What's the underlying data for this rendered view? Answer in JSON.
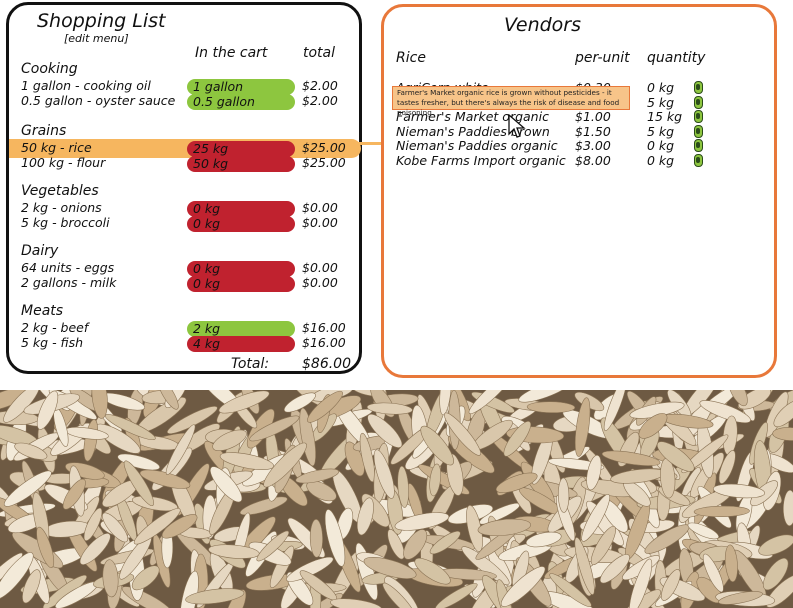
{
  "shopping_list": {
    "title": "Shopping List",
    "edit_menu": "[edit menu]",
    "col_cart": "In the cart",
    "col_total": "total",
    "categories": [
      {
        "name": "Cooking",
        "items": [
          {
            "label": "1 gallon - cooking oil",
            "cart": "1 gallon",
            "status": "green",
            "total": "$2.00"
          },
          {
            "label": "0.5 gallon - oyster sauce",
            "cart": "0.5 gallon",
            "status": "green",
            "total": "$2.00"
          }
        ]
      },
      {
        "name": "Grains",
        "items": [
          {
            "label": "50 kg - rice",
            "cart": "25 kg",
            "status": "red",
            "total": "$25.00"
          },
          {
            "label": "100 kg - flour",
            "cart": "50 kg",
            "status": "red",
            "total": "$25.00"
          }
        ]
      },
      {
        "name": "Vegetables",
        "items": [
          {
            "label": "2 kg - onions",
            "cart": "0 kg",
            "status": "red",
            "total": "$0.00"
          },
          {
            "label": "5 kg - broccoli",
            "cart": "0 kg",
            "status": "red",
            "total": "$0.00"
          }
        ]
      },
      {
        "name": "Dairy",
        "items": [
          {
            "label": "64 units - eggs",
            "cart": "0 kg",
            "status": "red",
            "total": "$0.00"
          },
          {
            "label": "2 gallons - milk",
            "cart": "0 kg",
            "status": "red",
            "total": "$0.00"
          }
        ]
      },
      {
        "name": "Meats",
        "items": [
          {
            "label": "2 kg - beef",
            "cart": "2 kg",
            "status": "green",
            "total": "$16.00"
          },
          {
            "label": "5 kg - fish",
            "cart": "4 kg",
            "status": "red",
            "total": "$16.00"
          }
        ]
      }
    ],
    "total_label": "Total:",
    "total_value": "$86.00"
  },
  "vendors": {
    "title": "Vendors",
    "col_product": "Rice",
    "col_unit": "per-unit",
    "col_qty": "quantity",
    "rows": [
      {
        "name": "AgriCorn white",
        "price": "$0.30",
        "qty": "0 kg"
      },
      {
        "name": "",
        "price": "",
        "qty": "5 kg"
      },
      {
        "name": "Farmer's Market organic",
        "price": "$1.00",
        "qty": "15 kg"
      },
      {
        "name": "Nieman's Paddies brown",
        "price": "$1.50",
        "qty": "5 kg"
      },
      {
        "name": "Nieman's Paddies organic",
        "price": "$3.00",
        "qty": "0 kg"
      },
      {
        "name": "Kobe Farms Import organic",
        "price": "$8.00",
        "qty": "0 kg"
      }
    ],
    "tooltip": "Farmer's Market organic rice is grown without pesticides - it tastes fresher, but there's always the risk of disease and food poisoning"
  },
  "colors": {
    "in_stock": "#8dc63f",
    "short": "#c0222f",
    "highlight": "#f6b65f",
    "vendor_border": "#e8783a"
  }
}
